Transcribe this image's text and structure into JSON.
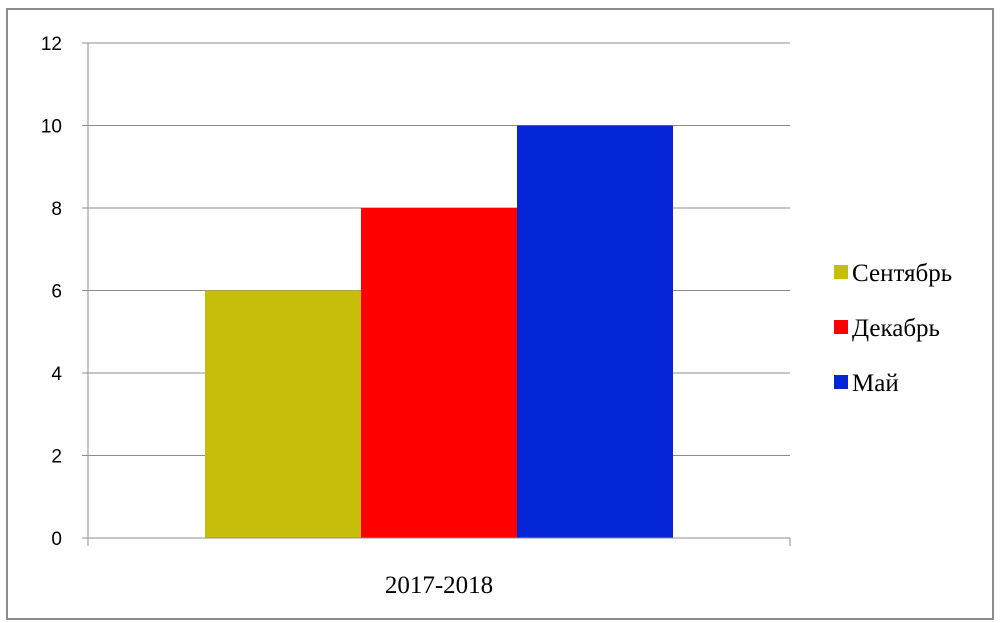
{
  "chart_data": {
    "type": "bar",
    "categories": [
      "2017-2018"
    ],
    "series": [
      {
        "name": "Сентябрь",
        "values": [
          6
        ],
        "color": "#c6be0a"
      },
      {
        "name": "Декабрь",
        "values": [
          8
        ],
        "color": "#ff0000"
      },
      {
        "name": "Май",
        "values": [
          10
        ],
        "color": "#0426d6"
      }
    ],
    "ylim": [
      0,
      12
    ],
    "yticks": [
      "0",
      "2",
      "4",
      "6",
      "8",
      "10",
      "12"
    ],
    "grid": true,
    "legend_position": "right"
  }
}
